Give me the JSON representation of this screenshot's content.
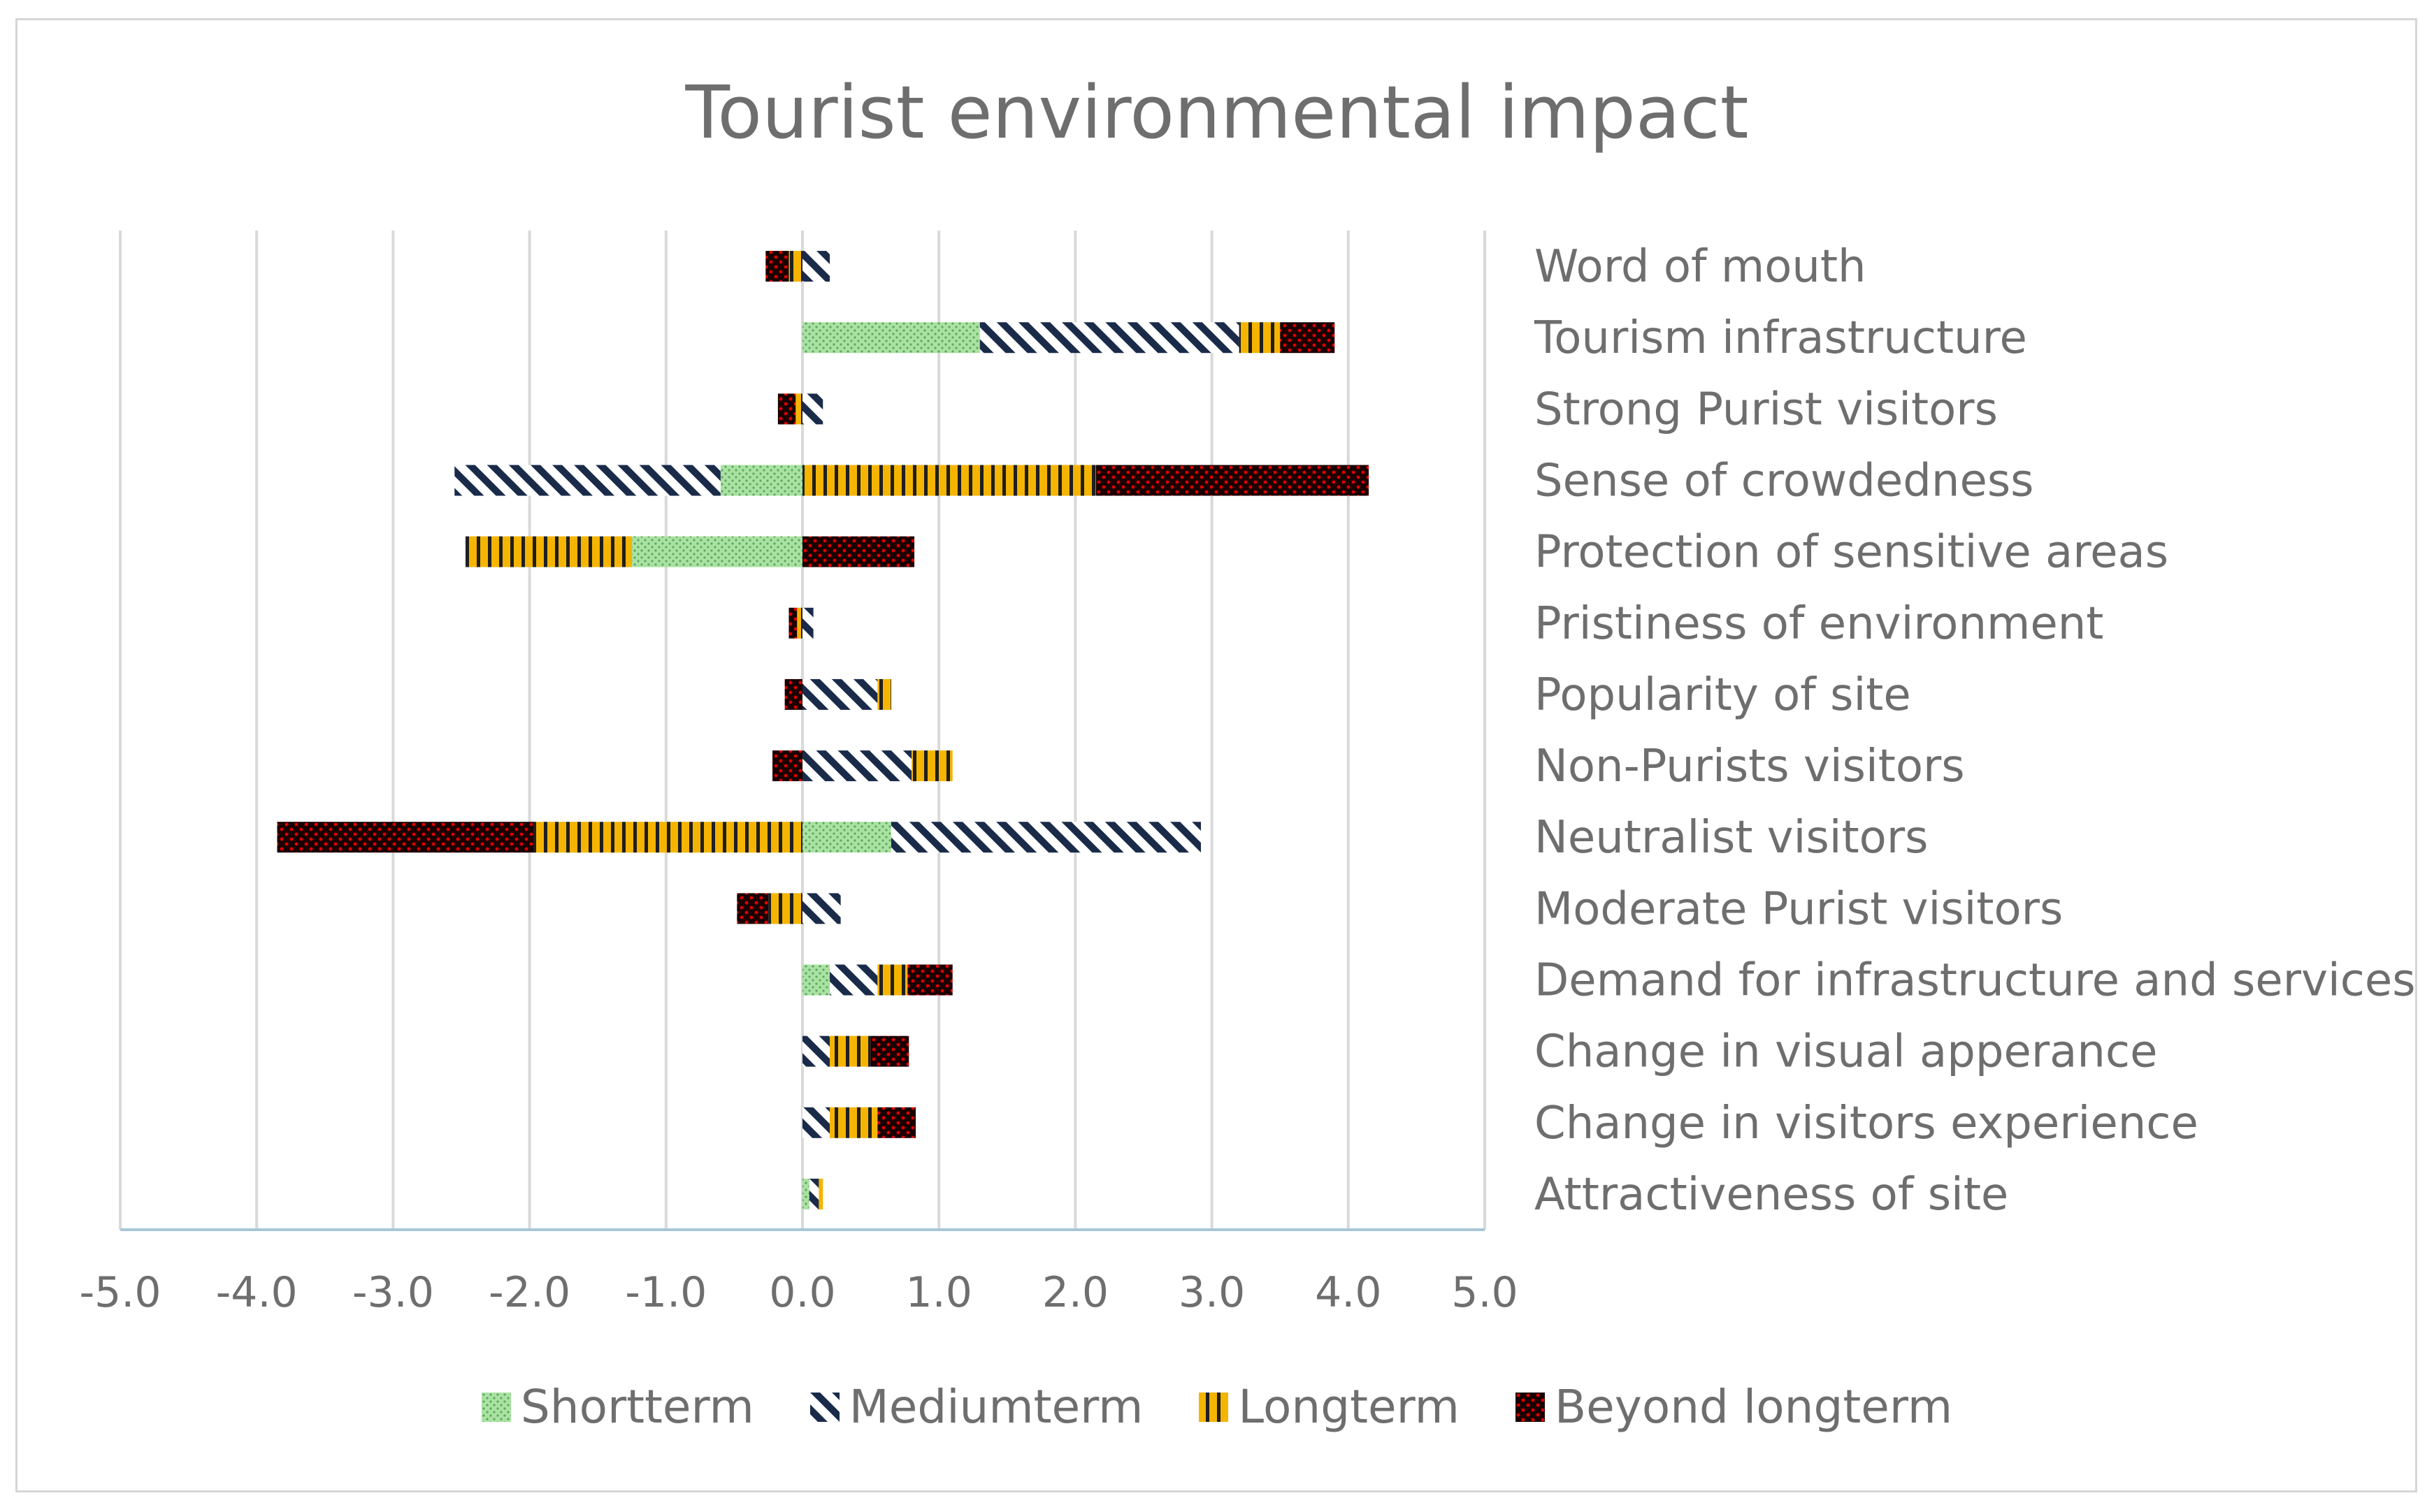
{
  "chart_data": {
    "type": "bar",
    "orientation": "horizontal",
    "stacked": true,
    "title": "Tourist environmental impact",
    "xlim": [
      -5.0,
      5.0
    ],
    "xticks": [
      "-5.0",
      "-4.0",
      "-3.0",
      "-2.0",
      "-1.0",
      "0.0",
      "1.0",
      "2.0",
      "3.0",
      "4.0",
      "5.0"
    ],
    "xtick_values": [
      -5,
      -4,
      -3,
      -2,
      -1,
      0,
      1,
      2,
      3,
      4,
      5
    ],
    "grid": true,
    "legend_position": "bottom",
    "category_label_position": "right",
    "categories": [
      "Word of mouth",
      "Tourism infrastructure",
      "Strong Purist visitors",
      "Sense of crowdedness",
      "Protection of sensitive areas",
      "Pristiness of environment",
      "Popularity of site",
      "Non-Purists visitors",
      "Neutralist visitors",
      "Moderate Purist visitors",
      "Demand for infrastructure and services",
      "Change in visual apperance",
      "Change in visitors experience",
      "Attractiveness of site"
    ],
    "series": [
      {
        "name": "Shortterm",
        "values": [
          0,
          1.3,
          0,
          -0.6,
          -1.25,
          0,
          0,
          0,
          0.65,
          0,
          0.2,
          0,
          0,
          0.05
        ]
      },
      {
        "name": "Mediumterm",
        "values": [
          0.2,
          1.9,
          0.15,
          -1.95,
          0,
          0.08,
          0.55,
          0.8,
          2.27,
          0.28,
          0.35,
          0.2,
          0.2,
          0.07
        ]
      },
      {
        "name": "Longterm",
        "values": [
          -0.1,
          0.3,
          -0.05,
          2.15,
          -1.22,
          -0.04,
          0.1,
          0.3,
          -1.97,
          -0.25,
          0.22,
          0.3,
          0.35,
          0.03
        ]
      },
      {
        "name": "Beyond longterm",
        "values": [
          -0.17,
          0.4,
          -0.13,
          2.0,
          0.82,
          -0.06,
          -0.13,
          -0.22,
          -1.88,
          -0.23,
          0.33,
          0.28,
          0.28,
          0
        ]
      }
    ]
  },
  "legend": {
    "items": [
      {
        "label": "Shortterm",
        "pattern": "dots",
        "color": "#8fd68f"
      },
      {
        "label": "Mediumterm",
        "pattern": "diagonal",
        "color": "#1a2b4a"
      },
      {
        "label": "Longterm",
        "pattern": "vertical",
        "color": "#f5b400"
      },
      {
        "label": "Beyond longterm",
        "pattern": "dots-red",
        "color": "#c00000"
      }
    ]
  },
  "colors": {
    "text": "#6e6e6e",
    "gridline": "#d9d9d9",
    "axis": "#a7c7d8",
    "frame": "#d6d6d6"
  }
}
